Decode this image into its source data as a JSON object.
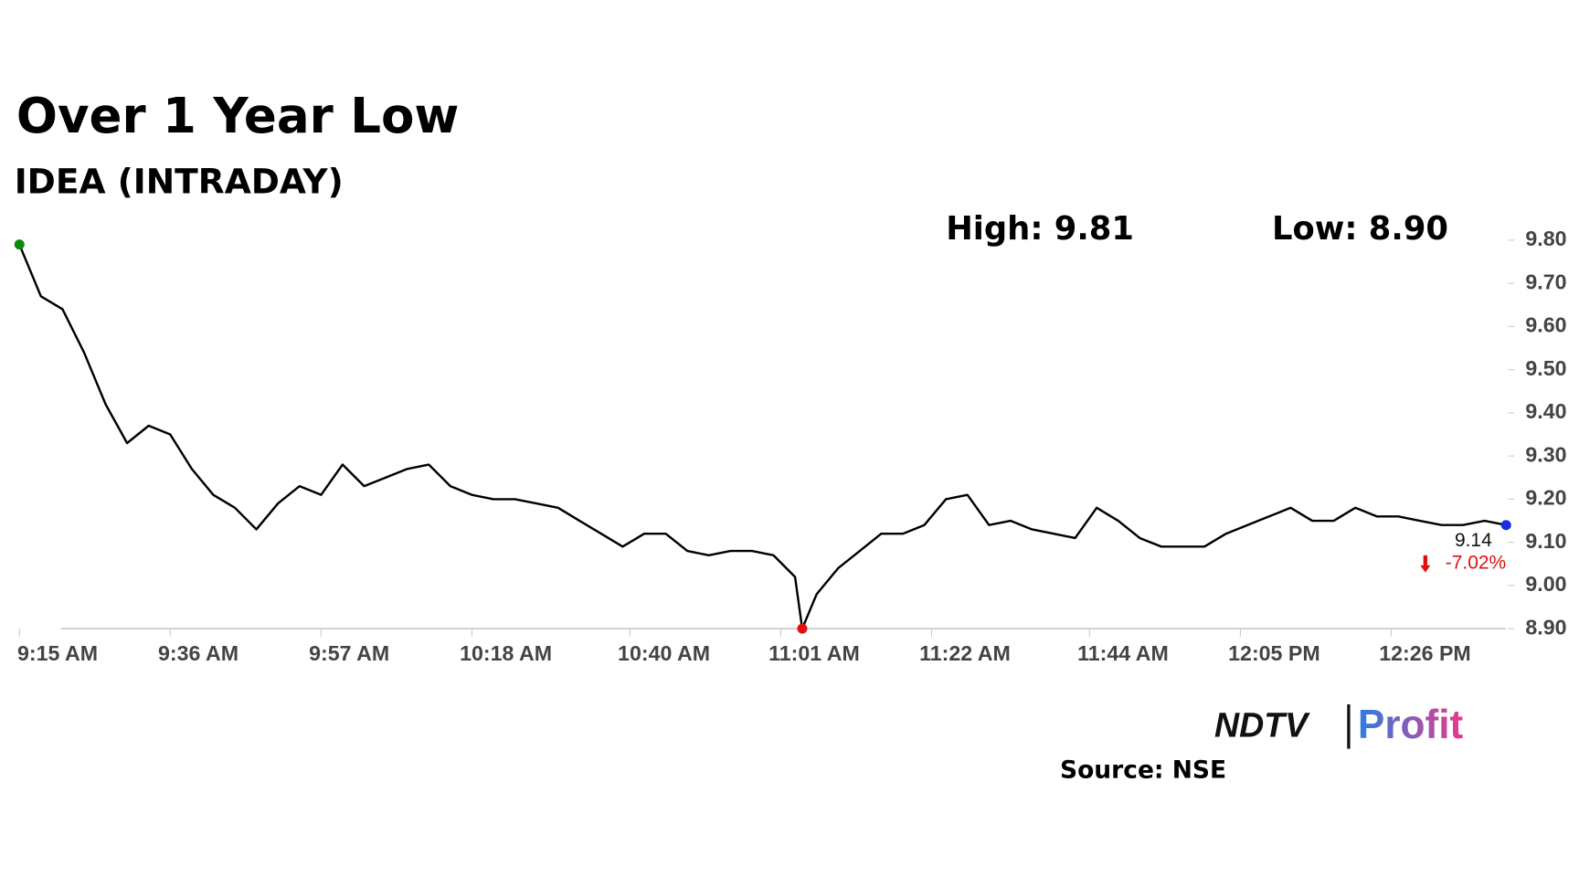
{
  "chart_data": {
    "type": "line",
    "title": "Over 1 Year Low",
    "subtitle": "IDEA (INTRADAY)",
    "annotations": {
      "high": "High: 9.81",
      "low": "Low: 8.90",
      "change": "-7.02%"
    },
    "source": "Source: NSE",
    "logo": {
      "left": "NDTV",
      "right": "Profit"
    },
    "x": [
      "09:15",
      "09:18",
      "09:21",
      "09:24",
      "09:27",
      "09:30",
      "09:33",
      "09:36",
      "09:39",
      "09:42",
      "09:45",
      "09:48",
      "09:51",
      "09:54",
      "09:57",
      "10:00",
      "10:03",
      "10:06",
      "10:09",
      "10:12",
      "10:15",
      "10:18",
      "10:21",
      "10:24",
      "10:27",
      "10:30",
      "10:33",
      "10:36",
      "10:39",
      "10:42",
      "10:45",
      "10:48",
      "10:51",
      "10:54",
      "10:57",
      "11:00",
      "11:03",
      "11:04",
      "11:06",
      "11:09",
      "11:12",
      "11:15",
      "11:18",
      "11:21",
      "11:24",
      "11:27",
      "11:30",
      "11:33",
      "11:36",
      "11:39",
      "11:42",
      "11:45",
      "11:48",
      "11:51",
      "11:54",
      "11:57",
      "12:00",
      "12:03",
      "12:06",
      "12:09",
      "12:12",
      "12:15",
      "12:18",
      "12:21",
      "12:24",
      "12:27",
      "12:30",
      "12:33",
      "12:36",
      "12:39",
      "12:42"
    ],
    "values": [
      9.79,
      9.67,
      9.64,
      9.54,
      9.42,
      9.33,
      9.37,
      9.35,
      9.27,
      9.21,
      9.18,
      9.13,
      9.19,
      9.23,
      9.21,
      9.28,
      9.23,
      9.25,
      9.27,
      9.28,
      9.23,
      9.21,
      9.2,
      9.2,
      9.19,
      9.18,
      9.15,
      9.12,
      9.09,
      9.12,
      9.12,
      9.08,
      9.07,
      9.08,
      9.08,
      9.07,
      9.02,
      8.9,
      8.98,
      9.04,
      9.08,
      9.12,
      9.12,
      9.14,
      9.2,
      9.21,
      9.14,
      9.15,
      9.13,
      9.12,
      9.11,
      9.18,
      9.15,
      9.11,
      9.09,
      9.09,
      9.09,
      9.12,
      9.14,
      9.16,
      9.18,
      9.15,
      9.15,
      9.18,
      9.16,
      9.16,
      9.15,
      9.14,
      9.14,
      9.15,
      9.14
    ],
    "color": "#000000",
    "start_color": "#0a8a0a",
    "low_color": "#e01010",
    "end_color": "#1a2ee0",
    "change_color": "#e01010",
    "xlim": [
      "09:15",
      "12:42"
    ],
    "xticks": [
      {
        "value": "09:15",
        "label": "9:15 AM"
      },
      {
        "value": "09:36",
        "label": "9:36 AM"
      },
      {
        "value": "09:57",
        "label": "9:57 AM"
      },
      {
        "value": "10:18",
        "label": "10:18 AM"
      },
      {
        "value": "10:40",
        "label": "10:40 AM"
      },
      {
        "value": "11:01",
        "label": "11:01 AM"
      },
      {
        "value": "11:22",
        "label": "11:22 AM"
      },
      {
        "value": "11:44",
        "label": "11:44 AM"
      },
      {
        "value": "12:05",
        "label": "12:05 PM"
      },
      {
        "value": "12:26",
        "label": "12:26 PM"
      }
    ],
    "ylim": [
      8.9,
      9.8
    ],
    "yticks": [
      {
        "value": 8.9,
        "label": "8.90"
      },
      {
        "value": 9.0,
        "label": "9.00"
      },
      {
        "value": 9.1,
        "label": "9.10"
      },
      {
        "value": 9.2,
        "label": "9.20"
      },
      {
        "value": 9.3,
        "label": "9.30"
      },
      {
        "value": 9.4,
        "label": "9.40"
      },
      {
        "value": 9.5,
        "label": "9.50"
      },
      {
        "value": 9.6,
        "label": "9.60"
      },
      {
        "value": 9.7,
        "label": "9.70"
      },
      {
        "value": 9.8,
        "label": "9.80"
      }
    ],
    "grid": false
  }
}
